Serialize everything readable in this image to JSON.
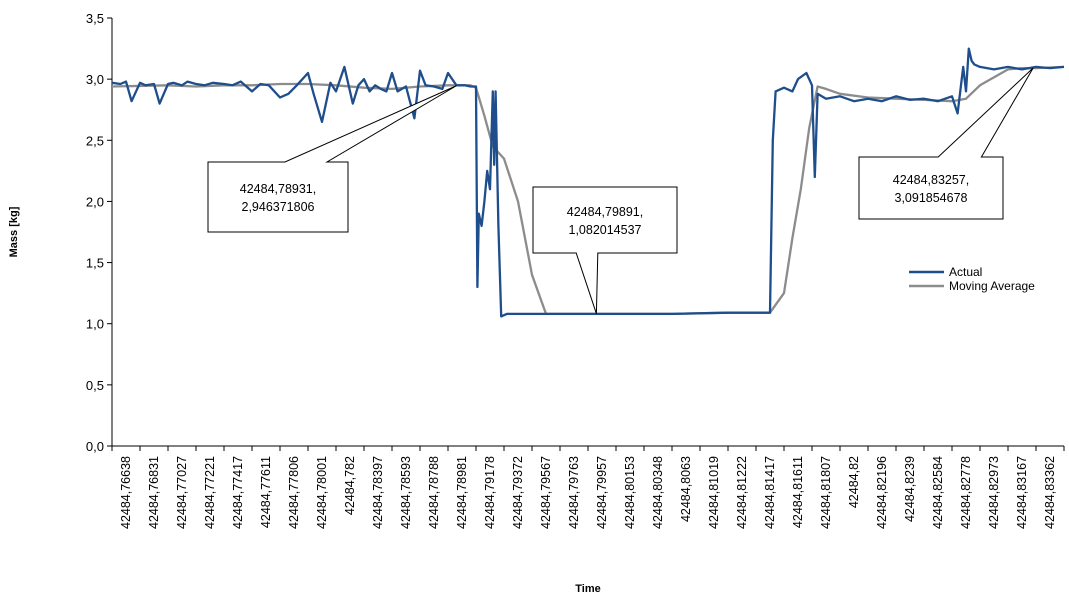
{
  "chart_data": {
    "type": "line",
    "xlabel": "Time",
    "ylabel": "Mass [kg]",
    "ylim": [
      0,
      3.5
    ],
    "yticks": [
      "0,0",
      "0,5",
      "1,0",
      "1,5",
      "2,0",
      "2,5",
      "3,0",
      "3,5"
    ],
    "ytick_values": [
      0,
      0.5,
      1,
      1.5,
      2,
      2.5,
      3,
      3.5
    ],
    "x_tick_labels": [
      "42484,76638",
      "42484,76831",
      "42484,77027",
      "42484,77221",
      "42484,77417",
      "42484,77611",
      "42484,77806",
      "42484,78001",
      "42484,782",
      "42484,78397",
      "42484,78593",
      "42484,78788",
      "42484,78981",
      "42484,79178",
      "42484,79372",
      "42484,79567",
      "42484,79763",
      "42484,79957",
      "42484,80153",
      "42484,80348",
      "42484,8063",
      "42484,81019",
      "42484,81222",
      "42484,81417",
      "42484,81611",
      "42484,81807",
      "42484,82",
      "42484,82196",
      "42484,8239",
      "42484,82584",
      "42484,82778",
      "42484,82973",
      "42484,83167",
      "42484,83362"
    ],
    "legend_position": "right",
    "series": [
      {
        "name": "Actual",
        "color": "#1f4e8c",
        "x": [
          0,
          0.3,
          0.5,
          0.7,
          1.0,
          1.2,
          1.5,
          1.7,
          2.0,
          2.2,
          2.5,
          2.7,
          3.0,
          3.3,
          3.6,
          4.0,
          4.3,
          4.6,
          5.0,
          5.3,
          5.6,
          6.0,
          6.3,
          6.6,
          7.0,
          7.2,
          7.5,
          7.8,
          8.0,
          8.3,
          8.6,
          8.8,
          9.0,
          9.2,
          9.4,
          9.6,
          9.8,
          10.0,
          10.2,
          10.5,
          10.8,
          11.0,
          11.2,
          11.5,
          11.8,
          12.0,
          12.3,
          12.6,
          12.8,
          13.0,
          13.05,
          13.1,
          13.2,
          13.3,
          13.4,
          13.5,
          13.6,
          13.65,
          13.7,
          13.8,
          13.9,
          14.0,
          14.1,
          14.15,
          14.2,
          14.3,
          14.5,
          16.0,
          18.0,
          20.0,
          22.0,
          23.0,
          23.5,
          23.6,
          23.7,
          24.0,
          24.3,
          24.5,
          24.8,
          25.0,
          25.1,
          25.2,
          25.5,
          26.0,
          26.5,
          27.0,
          27.5,
          28.0,
          28.5,
          29.0,
          29.5,
          30.0,
          30.2,
          30.4,
          30.5,
          30.6,
          30.7,
          30.8,
          31.0,
          31.5,
          32.0,
          32.5,
          33.0,
          33.5,
          34.0
        ],
        "y": [
          2.97,
          2.96,
          2.98,
          2.82,
          2.97,
          2.95,
          2.96,
          2.8,
          2.96,
          2.97,
          2.95,
          2.98,
          2.96,
          2.95,
          2.97,
          2.96,
          2.95,
          2.98,
          2.9,
          2.96,
          2.95,
          2.85,
          2.88,
          2.95,
          3.05,
          2.88,
          2.65,
          2.97,
          2.9,
          3.1,
          2.8,
          2.95,
          3.0,
          2.9,
          2.95,
          2.92,
          2.9,
          3.05,
          2.9,
          2.94,
          2.68,
          3.07,
          2.95,
          2.94,
          2.92,
          3.05,
          2.95,
          2.95,
          2.94,
          2.94,
          1.3,
          1.9,
          1.8,
          2.0,
          2.25,
          2.1,
          2.9,
          2.3,
          2.9,
          1.8,
          1.06,
          1.07,
          1.08,
          1.08,
          1.08,
          1.08,
          1.08,
          1.08,
          1.08,
          1.08,
          1.09,
          1.09,
          1.09,
          2.5,
          2.9,
          2.93,
          2.9,
          3.0,
          3.05,
          2.95,
          2.2,
          2.88,
          2.84,
          2.86,
          2.82,
          2.84,
          2.82,
          2.86,
          2.83,
          2.84,
          2.82,
          2.86,
          2.72,
          3.1,
          2.9,
          3.25,
          3.15,
          3.12,
          3.1,
          3.08,
          3.1,
          3.08,
          3.1,
          3.09,
          3.1
        ]
      },
      {
        "name": "Moving Average",
        "color": "#8c8c8c",
        "x": [
          0,
          2.0,
          3.0,
          4.0,
          5.0,
          6.0,
          7.0,
          8.0,
          9.0,
          10.0,
          11.0,
          12.0,
          12.8,
          13.0,
          13.3,
          13.6,
          14.0,
          14.5,
          15.0,
          15.5,
          16.0,
          18.0,
          20.0,
          22.0,
          23.0,
          23.5,
          24.0,
          24.3,
          24.6,
          24.9,
          25.2,
          25.5,
          26.0,
          27.0,
          28.0,
          29.0,
          30.0,
          30.5,
          31.0,
          32.0,
          32.5,
          33.0,
          34.0
        ],
        "y": [
          2.94,
          2.95,
          2.94,
          2.95,
          2.95,
          2.96,
          2.96,
          2.95,
          2.93,
          2.92,
          2.94,
          2.95,
          2.95,
          2.93,
          2.7,
          2.45,
          2.35,
          2.0,
          1.4,
          1.08,
          1.08,
          1.08,
          1.08,
          1.09,
          1.09,
          1.09,
          1.25,
          1.7,
          2.1,
          2.6,
          2.94,
          2.92,
          2.88,
          2.85,
          2.84,
          2.83,
          2.82,
          2.84,
          2.95,
          3.08,
          3.09,
          3.09,
          3.1
        ]
      }
    ],
    "annotations": [
      {
        "line1": "42484,78931,",
        "line2": "2,946371806",
        "point_x": 12.3,
        "point_y": 2.946
      },
      {
        "line1": "42484,79891,",
        "line2": "1,082014537",
        "point_x": 17.3,
        "point_y": 1.082
      },
      {
        "line1": "42484,83257,",
        "line2": "3,091854678",
        "point_x": 32.9,
        "point_y": 3.092
      }
    ]
  }
}
